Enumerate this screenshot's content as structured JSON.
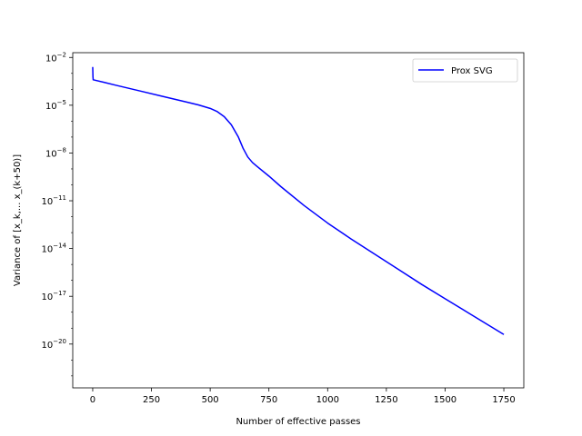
{
  "chart_data": {
    "type": "line",
    "xlabel": "Number of effective passes",
    "ylabel": "Variance of [x_k,... x_(k+50)]",
    "xlim": [
      -85,
      1835
    ],
    "ylim_log10": [
      -22.75,
      -1.7
    ],
    "yscale": "log",
    "xticks": [
      0,
      250,
      500,
      750,
      1000,
      1250,
      1500,
      1750
    ],
    "xtick_labels": [
      "0",
      "250",
      "500",
      "750",
      "1000",
      "1250",
      "1500",
      "1750"
    ],
    "yticks_log10": [
      -2,
      -5,
      -8,
      -11,
      -14,
      -17,
      -20
    ],
    "ytick_labels": [
      "10−2",
      "10−5",
      "10−8",
      "10−11",
      "10−14",
      "10−17",
      "10−20"
    ],
    "grid": false,
    "legend_position": "upper right",
    "series": [
      {
        "name": "Prox SVG",
        "color": "#0000ff",
        "x": [
          0,
          1,
          2,
          50,
          100,
          200,
          300,
          400,
          450,
          500,
          530,
          560,
          590,
          620,
          640,
          660,
          680,
          700,
          750,
          800,
          900,
          1000,
          1100,
          1200,
          1300,
          1400,
          1500,
          1600,
          1700,
          1750
        ],
        "y_log10": [
          -2.6,
          -3.2,
          -3.4,
          -3.57,
          -3.75,
          -4.1,
          -4.45,
          -4.8,
          -4.98,
          -5.2,
          -5.4,
          -5.72,
          -6.23,
          -7.0,
          -7.7,
          -8.25,
          -8.6,
          -8.85,
          -9.45,
          -10.1,
          -11.3,
          -12.4,
          -13.4,
          -14.35,
          -15.3,
          -16.25,
          -17.15,
          -18.05,
          -18.95,
          -19.4
        ]
      }
    ]
  }
}
